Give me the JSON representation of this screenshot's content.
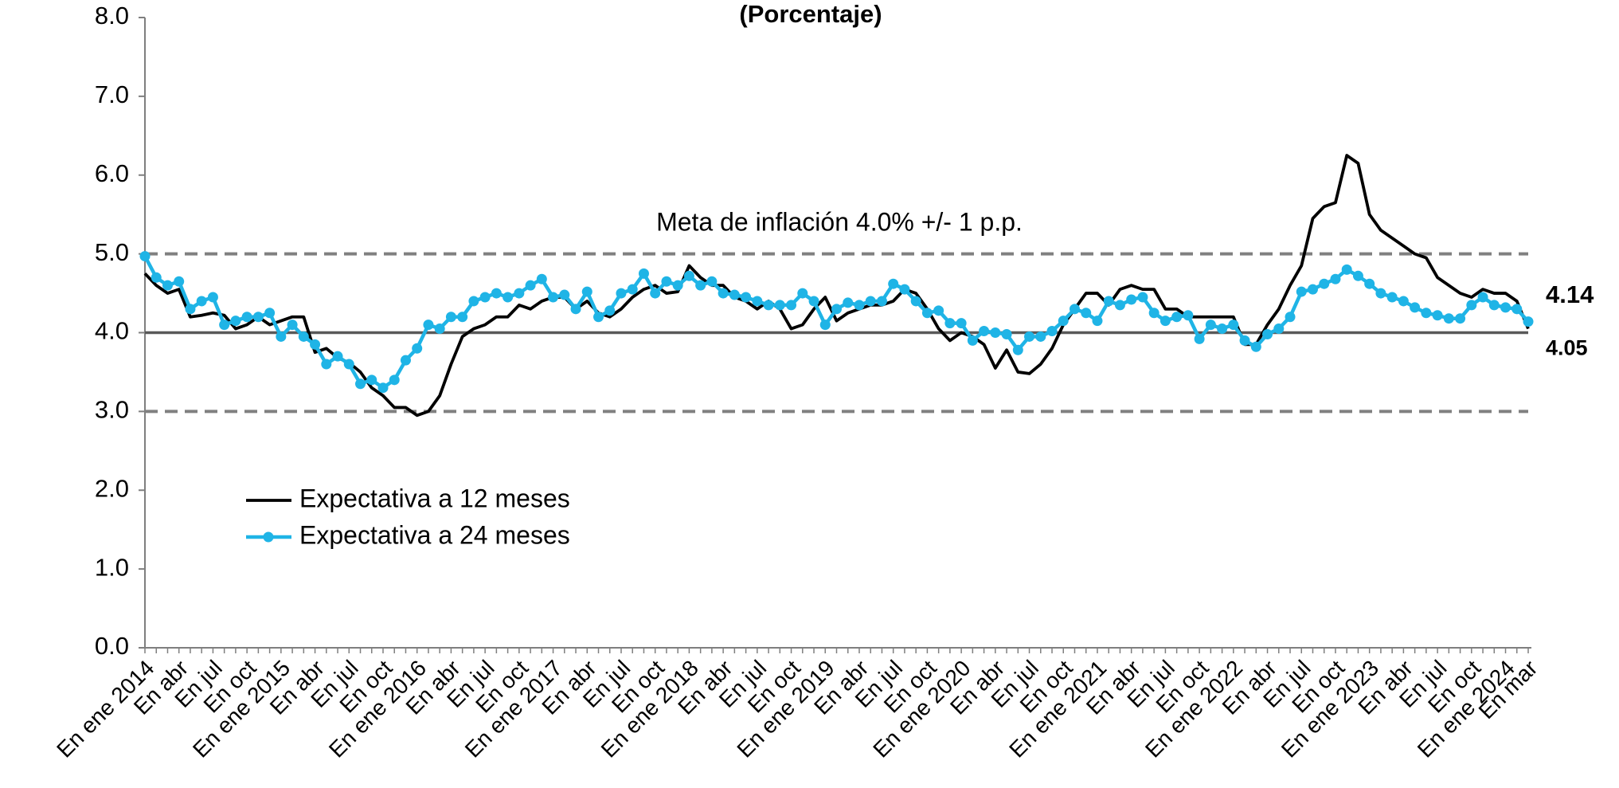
{
  "chart_data": {
    "type": "line",
    "title": "(Porcentaje)",
    "annotations": [
      "Meta de inflación 4.0% +/- 1 p.p."
    ],
    "categories": [
      "En ene 2014",
      null,
      null,
      "En abr",
      null,
      null,
      "En jul",
      null,
      null,
      "En oct",
      null,
      null,
      "En ene 2015",
      null,
      null,
      "En abr",
      null,
      null,
      "En jul",
      null,
      null,
      "En oct",
      null,
      null,
      "En ene 2016",
      null,
      null,
      "En abr",
      null,
      null,
      "En jul",
      null,
      null,
      "En oct",
      null,
      null,
      "En ene 2017",
      null,
      null,
      "En abr",
      null,
      null,
      "En jul",
      null,
      null,
      "En oct",
      null,
      null,
      "En ene 2018",
      null,
      null,
      "En abr",
      null,
      null,
      "En jul",
      null,
      null,
      "En oct",
      null,
      null,
      "En ene 2019",
      null,
      null,
      "En abr",
      null,
      null,
      "En jul",
      null,
      null,
      "En oct",
      null,
      null,
      "En ene 2020",
      null,
      null,
      "En abr",
      null,
      null,
      "En jul",
      null,
      null,
      "En oct",
      null,
      null,
      "En ene 2021",
      null,
      null,
      "En abr",
      null,
      null,
      "En jul",
      null,
      null,
      "En oct",
      null,
      null,
      "En ene 2022",
      null,
      null,
      "En abr",
      null,
      null,
      "En jul",
      null,
      null,
      "En oct",
      null,
      null,
      "En ene 2023",
      null,
      null,
      "En abr",
      null,
      null,
      "En jul",
      null,
      null,
      "En oct",
      null,
      null,
      "En ene 2024",
      null,
      "En mar"
    ],
    "series": [
      {
        "name": "Expectativa a 12 meses",
        "color": "#000000",
        "markers": false,
        "values": [
          4.75,
          4.6,
          4.5,
          4.55,
          4.2,
          4.22,
          4.25,
          4.22,
          4.05,
          4.1,
          4.2,
          4.1,
          4.15,
          4.2,
          4.2,
          3.75,
          3.8,
          3.68,
          3.62,
          3.5,
          3.3,
          3.2,
          3.05,
          3.05,
          2.95,
          3.0,
          3.2,
          3.6,
          3.95,
          4.05,
          4.1,
          4.2,
          4.2,
          4.35,
          4.3,
          4.4,
          4.45,
          4.45,
          4.3,
          4.4,
          4.25,
          4.2,
          4.3,
          4.45,
          4.55,
          4.6,
          4.5,
          4.52,
          4.85,
          4.7,
          4.6,
          4.6,
          4.45,
          4.4,
          4.3,
          4.4,
          4.3,
          4.05,
          4.1,
          4.3,
          4.45,
          4.15,
          4.25,
          4.3,
          4.35,
          4.35,
          4.4,
          4.55,
          4.5,
          4.3,
          4.05,
          3.9,
          4.0,
          3.95,
          3.85,
          3.55,
          3.78,
          3.5,
          3.48,
          3.6,
          3.8,
          4.1,
          4.3,
          4.5,
          4.5,
          4.35,
          4.55,
          4.6,
          4.55,
          4.55,
          4.3,
          4.3,
          4.2,
          4.2,
          4.2,
          4.2,
          4.2,
          3.85,
          3.85,
          4.1,
          4.3,
          4.6,
          4.85,
          5.45,
          5.6,
          5.65,
          6.25,
          6.15,
          5.5,
          5.3,
          5.2,
          5.1,
          5.0,
          4.95,
          4.7,
          4.6,
          4.5,
          4.45,
          4.55,
          4.5,
          4.5,
          4.4,
          4.05
        ]
      },
      {
        "name": "Expectativa a 24 meses",
        "color": "#1fb4e6",
        "markers": true,
        "values": [
          4.97,
          4.7,
          4.6,
          4.65,
          4.3,
          4.4,
          4.45,
          4.1,
          4.15,
          4.2,
          4.2,
          4.25,
          3.95,
          4.1,
          3.95,
          3.85,
          3.6,
          3.7,
          3.6,
          3.35,
          3.4,
          3.3,
          3.4,
          3.65,
          3.8,
          4.1,
          4.05,
          4.2,
          4.2,
          4.4,
          4.45,
          4.5,
          4.45,
          4.5,
          4.6,
          4.68,
          4.45,
          4.48,
          4.3,
          4.52,
          4.2,
          4.28,
          4.5,
          4.55,
          4.75,
          4.5,
          4.65,
          4.6,
          4.72,
          4.6,
          4.65,
          4.5,
          4.48,
          4.45,
          4.4,
          4.35,
          4.35,
          4.35,
          4.5,
          4.4,
          4.1,
          4.3,
          4.38,
          4.35,
          4.4,
          4.4,
          4.62,
          4.55,
          4.4,
          4.25,
          4.28,
          4.12,
          4.12,
          3.9,
          4.02,
          4.0,
          3.98,
          3.78,
          3.95,
          3.95,
          4.02,
          4.15,
          4.3,
          4.25,
          4.15,
          4.4,
          4.35,
          4.42,
          4.45,
          4.25,
          4.15,
          4.2,
          4.22,
          3.92,
          4.1,
          4.05,
          4.1,
          3.9,
          3.82,
          3.98,
          4.05,
          4.2,
          4.52,
          4.55,
          4.62,
          4.68,
          4.8,
          4.72,
          4.62,
          4.5,
          4.45,
          4.4,
          4.32,
          4.25,
          4.22,
          4.18,
          4.18,
          4.35,
          4.45,
          4.35,
          4.32,
          4.3,
          4.14
        ]
      }
    ],
    "ylim": [
      0,
      8
    ],
    "yticks": [
      {
        "value": 0,
        "label": "0.0"
      },
      {
        "value": 1,
        "label": "1.0"
      },
      {
        "value": 2,
        "label": "2.0"
      },
      {
        "value": 3,
        "label": "3.0"
      },
      {
        "value": 4,
        "label": "4.0"
      },
      {
        "value": 5,
        "label": "5.0"
      },
      {
        "value": 6,
        "label": "6.0"
      },
      {
        "value": 7,
        "label": "7.0"
      },
      {
        "value": 8,
        "label": "8.0"
      }
    ],
    "reference_lines": [
      {
        "value": 5,
        "style": "dashed",
        "color": "#808080"
      },
      {
        "value": 4,
        "style": "solid",
        "color": "#595959"
      },
      {
        "value": 3,
        "style": "dashed",
        "color": "#808080"
      }
    ],
    "grid": false,
    "legend": "lower left"
  }
}
